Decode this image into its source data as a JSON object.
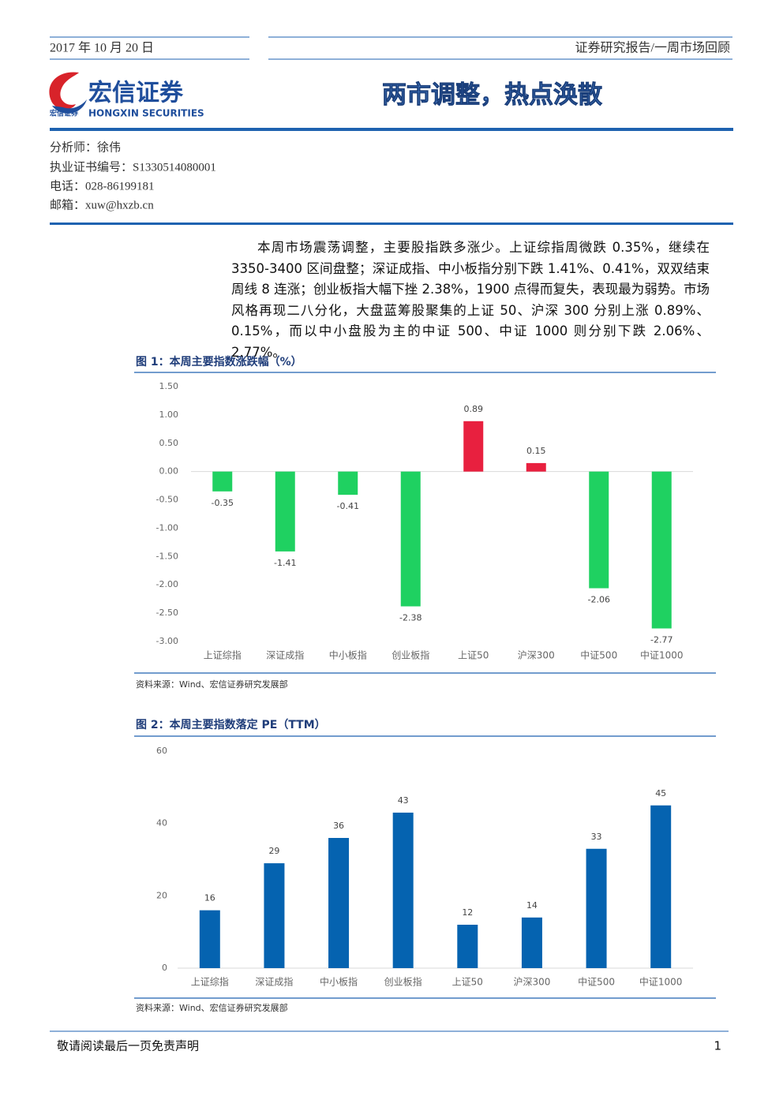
{
  "header": {
    "date": "2017 年 10 月 20 日",
    "category": "证券研究报告/一周市场回顾",
    "logo_cn": "宏信证券",
    "logo_small": "宏信证券",
    "logo_en": "HONGXIN SECURITIES",
    "title": "两市调整，热点涣散"
  },
  "analyst": [
    "分析师：徐伟",
    "执业证书编号：S1330514080001",
    "电话：028-86199181",
    "邮箱：xuw@hxzb.cn"
  ],
  "summary": "本周市场震荡调整，主要股指跌多涨少。上证综指周微跌 0.35%，继续在3350-3400 区间盘整；深证成指、中小板指分别下跌 1.41%、0.41%，双双结束周线 8 连涨；创业板指大幅下挫 2.38%，1900 点得而复失，表现最为弱势。市场风格再现二八分化，大盘蓝筹股聚集的上证 50、沪深 300 分别上涨 0.89%、0.15%，而以中小盘股为主的中证 500、中证 1000 则分别下跌 2.06%、2.77%。",
  "chart_data": [
    {
      "type": "bar",
      "title": "图 1：本周主要指数涨跌幅（%）",
      "source": "资料来源：Wind、宏信证券研究发展部",
      "categories": [
        "上证综指",
        "深证成指",
        "中小板指",
        "创业板指",
        "上证50",
        "沪深300",
        "中证500",
        "中证1000"
      ],
      "values": [
        -0.35,
        -1.41,
        -0.41,
        -2.38,
        0.89,
        0.15,
        -2.06,
        -2.77
      ],
      "positive_color": "#e8203f",
      "negative_color": "#1fd161",
      "ylim": [
        -3,
        1.5
      ],
      "yticks": [
        {
          "value": -3,
          "label": "-3.00"
        },
        {
          "value": -2.5,
          "label": "-2.50"
        },
        {
          "value": -2,
          "label": "-2.00"
        },
        {
          "value": -1.5,
          "label": "-1.50"
        },
        {
          "value": -1,
          "label": "-1.00"
        },
        {
          "value": -0.5,
          "label": "-0.50"
        },
        {
          "value": 0,
          "label": "0.00"
        },
        {
          "value": 0.5,
          "label": "0.50"
        },
        {
          "value": 1,
          "label": "1.00"
        },
        {
          "value": 1.5,
          "label": "1.50"
        }
      ],
      "grid": false
    },
    {
      "type": "bar",
      "title": "图 2：本周主要指数落定 PE（TTM）",
      "source": "资料来源：Wind、宏信证券研究发展部",
      "categories": [
        "上证综指",
        "深证成指",
        "中小板指",
        "创业板指",
        "上证50",
        "沪深300",
        "中证500",
        "中证1000"
      ],
      "values": [
        16,
        29,
        36,
        43,
        12,
        14,
        33,
        45
      ],
      "color": "#0563b0",
      "ylim": [
        0,
        60
      ],
      "yticks": [
        0,
        20,
        40,
        60
      ],
      "grid": false
    }
  ],
  "footer": {
    "disclaimer": "敬请阅读最后一页免责声明",
    "page": 1
  }
}
